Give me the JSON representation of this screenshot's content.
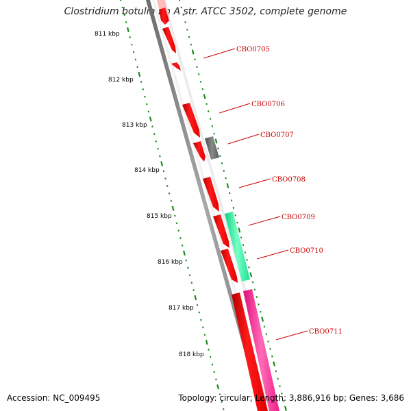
{
  "title": "Clostridium botulinum A str. ATCC 3502, complete genome",
  "footer": {
    "accession": "Accession: NC_009495",
    "summary": "Topology: circular; Length: 3,886,916 bp; Genes: 3,686"
  },
  "ruler_labels": [
    "811 kbp",
    "812 kbp",
    "813 kbp",
    "814 kbp",
    "815 kbp",
    "816 kbp",
    "817 kbp",
    "818 kbp"
  ],
  "gene_labels": [
    "CBO0705",
    "CBO0706",
    "CBO0707",
    "CBO0708",
    "CBO0709",
    "CBO0710",
    "CBO0711"
  ],
  "colors": {
    "backbone": "#8c8c8c",
    "forward_gene": "#ff0000",
    "gray_gene": "#707070",
    "green_gene": "#22ee99",
    "pink_gene": "#ff2a9a",
    "ruler": "#1a8a1a",
    "label": "#cc0000"
  }
}
